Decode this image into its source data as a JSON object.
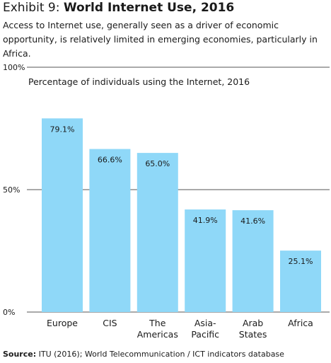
{
  "header": {
    "exhibit": "Exhibit 9:",
    "title": "World Internet Use, 2016",
    "subtitle": "Access to Internet use, generally seen as a driver of economic opportunity, is relatively limited in emerging economies, particularly in Africa."
  },
  "chart_data": {
    "type": "bar",
    "title": "Percentage of individuals using the Internet, 2016",
    "categories": [
      "Europe",
      "CIS",
      "The\nAmericas",
      "Asia-\nPacific",
      "Arab\nStates",
      "Africa"
    ],
    "values": [
      79.1,
      66.6,
      65.0,
      41.9,
      41.6,
      25.1
    ],
    "data_labels": [
      "79.1%",
      "66.6%",
      "65.0%",
      "41.9%",
      "41.6%",
      "25.1%"
    ],
    "ylim": [
      0,
      100
    ],
    "yticks": [
      0,
      50,
      100
    ],
    "ytick_labels": [
      "0%",
      "50%",
      "100%"
    ],
    "xlabel": "",
    "ylabel": "",
    "grid": true,
    "bar_color": "#8fd8f8",
    "gridline_color": "#555555"
  },
  "footer": {
    "source_label": "Source:",
    "source_text": "ITU (2016); World Telecommunication / ICT indicators database"
  }
}
